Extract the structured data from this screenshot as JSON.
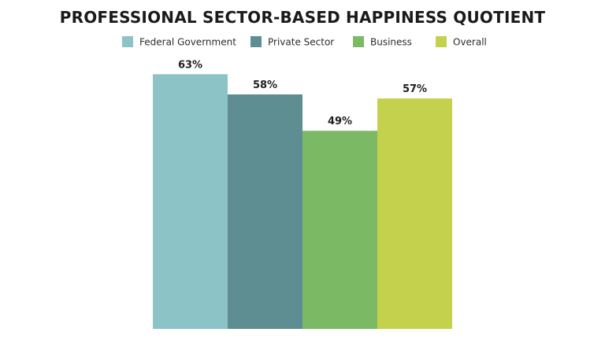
{
  "chart_data": {
    "type": "bar",
    "title": "PROFESSIONAL SECTOR-BASED HAPPINESS QUOTIENT",
    "categories": [
      "Federal Government",
      "Private Sector",
      "Business",
      "Overall"
    ],
    "values": [
      63,
      58,
      49,
      57
    ],
    "value_labels": [
      "63%",
      "58%",
      "49%",
      "57%"
    ],
    "colors": [
      "#8cc3c7",
      "#5e8e91",
      "#7cb964",
      "#c3d14c"
    ],
    "ylim": [
      0,
      100
    ],
    "xlabel": "",
    "ylabel": "",
    "grid": false,
    "legend_position": "top",
    "legend": [
      {
        "label": "Federal Government",
        "color": "#8cc3c7"
      },
      {
        "label": "Private Sector",
        "color": "#5e8e91"
      },
      {
        "label": "Business",
        "color": "#7cb964"
      },
      {
        "label": "Overall",
        "color": "#c3d14c"
      }
    ]
  }
}
